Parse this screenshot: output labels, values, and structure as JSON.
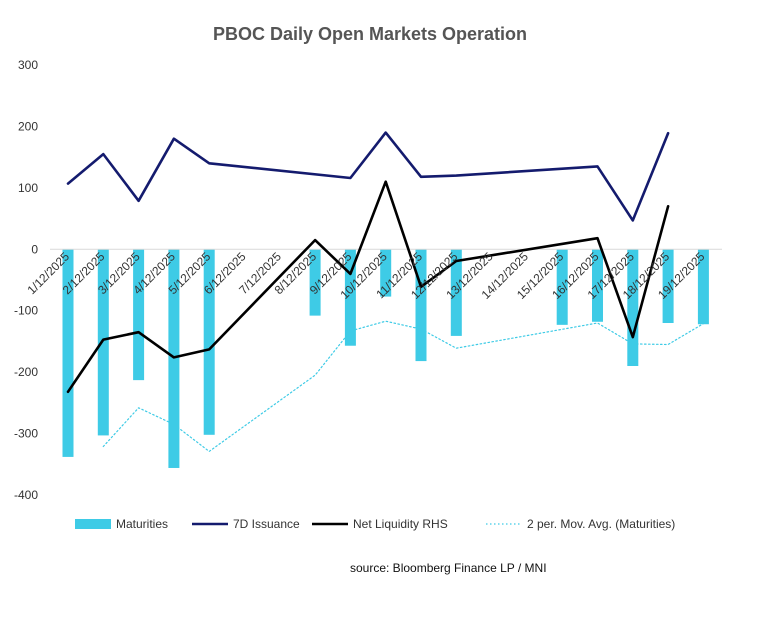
{
  "chart_data": {
    "type": "bar",
    "title": "PBOC Daily Open Markets Operation",
    "source": "source: Bloomberg Finance LP / MNI",
    "ylim": [
      -400,
      300
    ],
    "yticks": [
      "300",
      "200",
      "100",
      "0",
      "-100",
      "-200",
      "-300",
      "-400"
    ],
    "ytick_values": [
      300,
      200,
      100,
      0,
      -100,
      -200,
      -300,
      -400
    ],
    "categories": [
      "1/12/2025",
      "2/12/2025",
      "3/12/2025",
      "4/12/2025",
      "5/12/2025",
      "6/12/2025",
      "7/12/2025",
      "8/12/2025",
      "9/12/2025",
      "10/12/2025",
      "11/12/2025",
      "12/12/2025",
      "13/12/2025",
      "14/12/2025",
      "15/12/2025",
      "16/12/2025",
      "17/12/2025",
      "18/12/2025",
      "19/12/2025"
    ],
    "grid": false,
    "legend_position": "bottom",
    "series": [
      {
        "name": "Maturities",
        "kind": "bar",
        "color": "#3ECBE6",
        "values": [
          -338,
          -303,
          -213,
          -356,
          -302,
          null,
          null,
          -108,
          -157,
          -77,
          -182,
          -141,
          null,
          null,
          -123,
          -118,
          -190,
          -120,
          -122
        ]
      },
      {
        "name": "7D Issuance",
        "kind": "line",
        "color": "#141B6E",
        "values": [
          107,
          155,
          79,
          180,
          140,
          null,
          null,
          null,
          116,
          190,
          118,
          120,
          null,
          null,
          null,
          135,
          47,
          189,
          null
        ]
      },
      {
        "name": "Net Liquidity RHS",
        "kind": "line",
        "color": "#000000",
        "values": [
          -232,
          -147,
          -135,
          -176,
          -163,
          null,
          null,
          15,
          -40,
          110,
          -61,
          -19,
          null,
          null,
          null,
          18,
          -143,
          70,
          null
        ]
      },
      {
        "name": "2 per. Mov. Avg. (Maturities)",
        "kind": "dotted-line",
        "color": "#3ECBE6",
        "values": [
          null,
          -321,
          -258,
          -285,
          -329,
          null,
          null,
          -205,
          -133,
          -117,
          -130,
          -161,
          null,
          null,
          null,
          -120,
          -154,
          -155,
          -121
        ]
      }
    ]
  }
}
